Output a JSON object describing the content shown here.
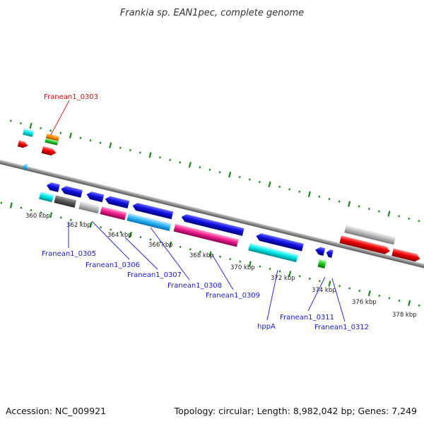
{
  "title": "Frankia sp. EAN1pec, complete genome",
  "accession": "Accession: NC_009921",
  "summary": "Topology: circular; Length: 8,982,042 bp; Genes: 7,249",
  "colors": {
    "backbone": "#8c8c8c",
    "tick": "#1a8a1a",
    "label_blue": "#1a1acc",
    "label_red": "#cc1111",
    "leader_blue": "#2a2add",
    "leader_red": "#dd2222"
  },
  "tick_labels": [
    "360 kbp",
    "362 kbp",
    "364 kbp",
    "366 kbp",
    "368 kbp",
    "370 kbp",
    "372 kbp",
    "374 kbp",
    "376 kbp",
    "378 kbp"
  ],
  "gene_labels": [
    {
      "text": "Franean1_0303",
      "color": "red"
    },
    {
      "text": "Franean1_0305",
      "color": "blue"
    },
    {
      "text": "Franean1_0306",
      "color": "blue"
    },
    {
      "text": "Franean1_0307",
      "color": "blue"
    },
    {
      "text": "Franean1_0308",
      "color": "blue"
    },
    {
      "text": "Franean1_0309",
      "color": "blue"
    },
    {
      "text": "hppA",
      "color": "blue"
    },
    {
      "text": "Franean1_0311",
      "color": "blue"
    },
    {
      "text": "Franean1_0312",
      "color": "blue"
    }
  ],
  "gene_colors": [
    "blue",
    "cyan",
    "magenta",
    "red",
    "gray",
    "darkgray",
    "orange",
    "green",
    "skyblue"
  ]
}
